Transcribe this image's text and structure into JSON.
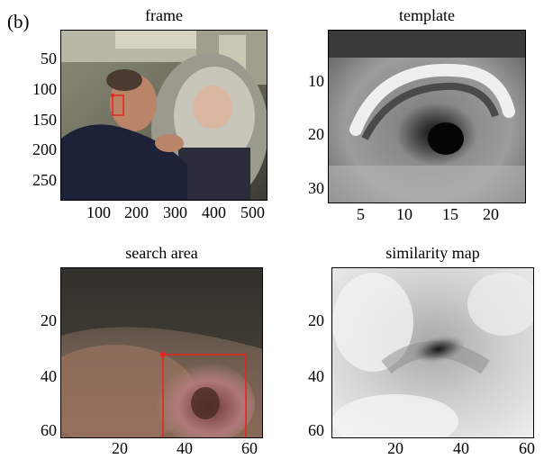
{
  "figure_label": "(b)",
  "panels": {
    "frame": {
      "title": "frame",
      "y_ticks": [
        "50",
        "100",
        "150",
        "200",
        "250"
      ],
      "x_ticks": [
        "100",
        "200",
        "300",
        "400",
        "500"
      ]
    },
    "template": {
      "title": "template",
      "y_ticks": [
        "10",
        "20",
        "30"
      ],
      "x_ticks": [
        "5",
        "10",
        "15",
        "20"
      ]
    },
    "search": {
      "title": "search area",
      "y_ticks": [
        "20",
        "40",
        "60"
      ],
      "x_ticks": [
        "20",
        "40",
        "60"
      ]
    },
    "similarity": {
      "title": "similarity map",
      "y_ticks": [
        "20",
        "40",
        "60"
      ],
      "x_ticks": [
        "20",
        "40",
        "60"
      ]
    }
  },
  "colors": {
    "marker": "#e8231d",
    "axes": "#000000"
  }
}
